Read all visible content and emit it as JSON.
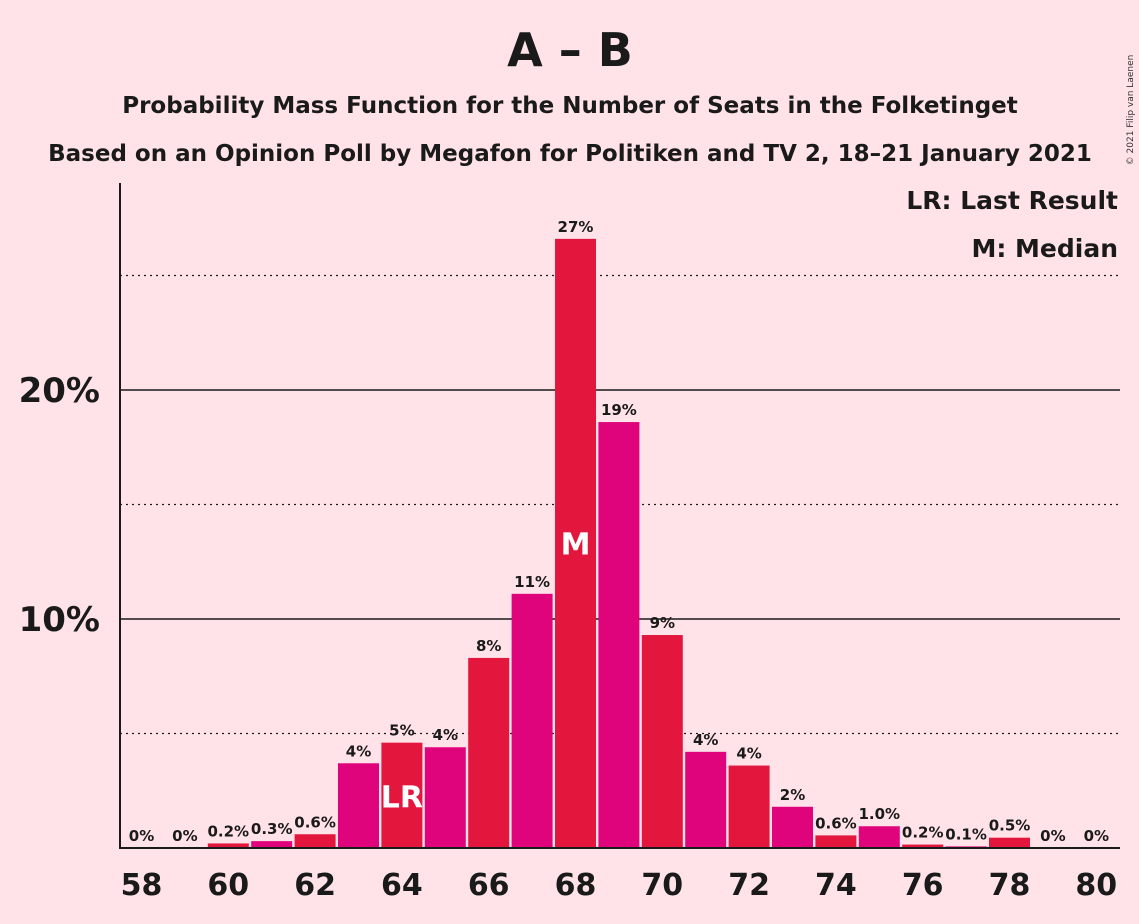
{
  "chart_data": {
    "type": "bar",
    "title": "A – B",
    "subtitle": "Probability Mass Function for the Number of Seats in the Folketinget",
    "subtitle2": "Based on an Opinion Poll by Megafon for Politiken and TV 2, 18–21 January 2021",
    "copyright": "© 2021 Filip van Laenen",
    "legend": [
      {
        "key": "LR",
        "text": "LR: Last Result"
      },
      {
        "key": "M",
        "text": "M: Median"
      }
    ],
    "legend_position": "top-right",
    "x": [
      58,
      59,
      60,
      61,
      62,
      63,
      64,
      65,
      66,
      67,
      68,
      69,
      70,
      71,
      72,
      73,
      74,
      75,
      76,
      77,
      78,
      79,
      80
    ],
    "values": [
      0,
      0,
      0.2,
      0.3,
      0.6,
      3.7,
      4.6,
      4.4,
      8.3,
      11.1,
      26.6,
      18.6,
      9.3,
      4.2,
      3.6,
      1.8,
      0.55,
      0.95,
      0.15,
      0.07,
      0.45,
      0,
      0
    ],
    "data_labels": [
      "0%",
      "0%",
      "0.2%",
      "0.3%",
      "0.6%",
      "4%",
      "5%",
      "4%",
      "8%",
      "11%",
      "27%",
      "19%",
      "9%",
      "4%",
      "4%",
      "2%",
      "0.6%",
      "1.0%",
      "0.2%",
      "0.1%",
      "0.5%",
      "0%",
      "0%"
    ],
    "x_tick_values": [
      58,
      60,
      62,
      64,
      66,
      68,
      70,
      72,
      74,
      76,
      78,
      80
    ],
    "x_tick_labels": [
      "58",
      "60",
      "62",
      "64",
      "66",
      "68",
      "70",
      "72",
      "74",
      "76",
      "78",
      "80"
    ],
    "y_ticks_labeled": [
      10,
      20
    ],
    "y_tick_labels": [
      "10%",
      "20%"
    ],
    "y_gridlines_solid": [
      10,
      20
    ],
    "y_gridlines_dotted": [
      5,
      15,
      25
    ],
    "ylim": [
      0,
      28.5
    ],
    "markers": [
      {
        "x": 64,
        "label": "LR"
      },
      {
        "x": 68,
        "label": "M"
      }
    ],
    "colors": {
      "even": "#E3163E",
      "odd": "#E0047C",
      "background": "#FFE3E8"
    }
  }
}
